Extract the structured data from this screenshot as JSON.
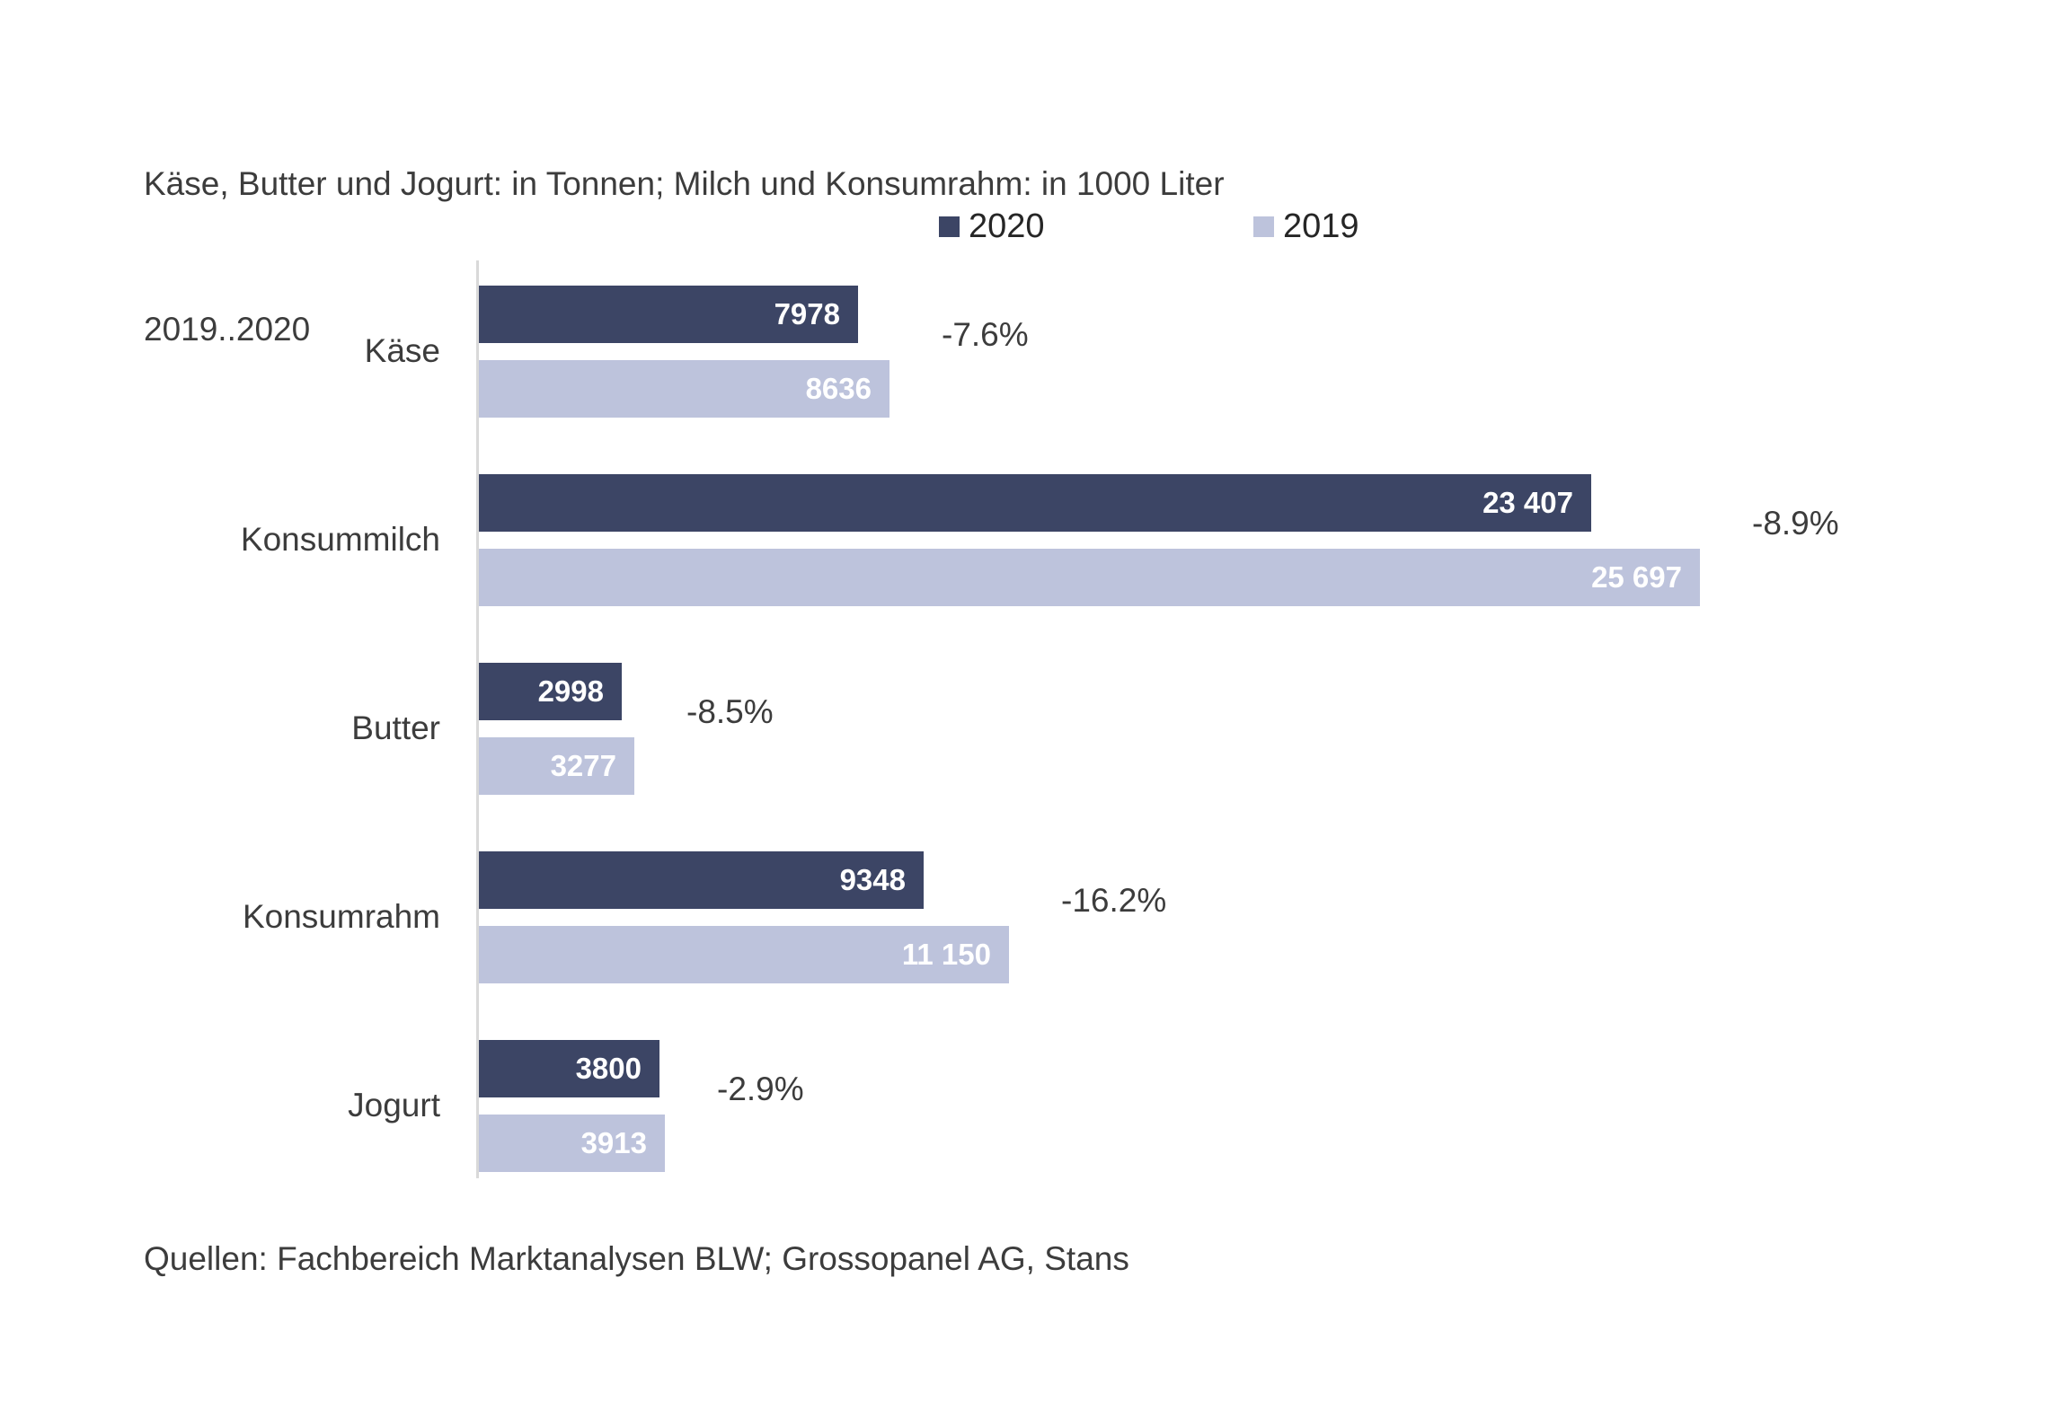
{
  "title": {
    "line1": "Käse, Butter und Jogurt: in Tonnen; Milch und Konsumrahm: in 1000 Liter",
    "line2": "2019..2020"
  },
  "legend": [
    {
      "label": "2020",
      "color": "#3c4565"
    },
    {
      "label": "2019",
      "color": "#bdc3dc"
    }
  ],
  "source": "Quellen: Fachbereich Marktanalysen BLW; Grossopanel AG, Stans",
  "colors": {
    "series_2020": "#3c4565",
    "series_2019": "#bdc3dc",
    "axis_line": "#d9d9d9",
    "text": "#3c3c3c",
    "bar_value_text": "#ffffff",
    "background": "#ffffff"
  },
  "chart_data": {
    "type": "bar",
    "orientation": "horizontal",
    "title": "Käse, Butter und Jogurt: in Tonnen; Milch und Konsumrahm: in 1000 Liter 2019..2020",
    "categories": [
      "Käse",
      "Konsummilch",
      "Butter",
      "Konsumrahm",
      "Jogurt"
    ],
    "series": [
      {
        "name": "2020",
        "color": "#3c4565",
        "values": [
          7978,
          23407,
          2998,
          9348,
          3800
        ],
        "labels": [
          "7978",
          "23 407",
          "2998",
          "9348",
          "3800"
        ]
      },
      {
        "name": "2019",
        "color": "#bdc3dc",
        "values": [
          8636,
          25697,
          3277,
          11150,
          3913
        ],
        "labels": [
          "8636",
          "25 697",
          "3277",
          "11 150",
          "3913"
        ]
      }
    ],
    "change_labels": [
      "-7.6%",
      "-8.9%",
      "-8.5%",
      "-16.2%",
      "-2.9%"
    ],
    "xlabel": "",
    "ylabel": "",
    "xlim": [
      0,
      26000
    ],
    "grid": false,
    "legend_position": "top",
    "value_labels_inside_bars": true
  }
}
